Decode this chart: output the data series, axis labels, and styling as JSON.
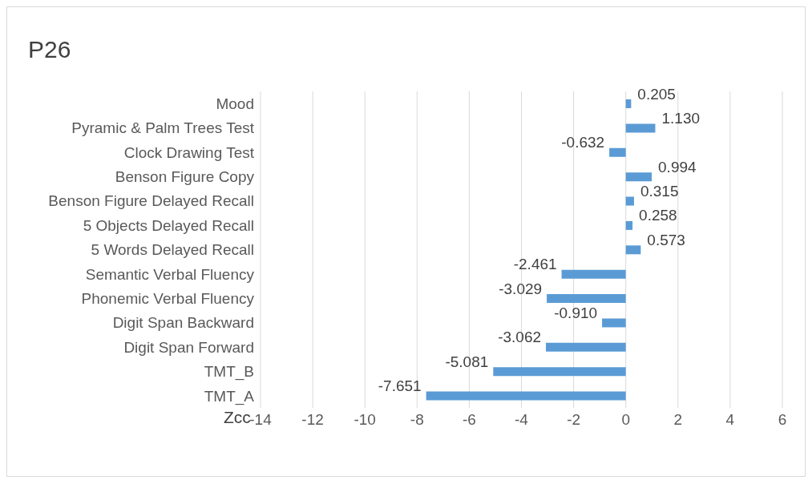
{
  "chart_data": {
    "type": "bar",
    "orientation": "horizontal",
    "title": "P26",
    "xlabel": "Zcc",
    "categories": [
      "Mood",
      "Pyramic & Palm Trees Test",
      "Clock Drawing Test",
      "Benson Figure Copy",
      "Benson Figure Delayed Recall",
      "5 Objects Delayed Recall",
      "5 Words Delayed Recall",
      "Semantic Verbal Fluency",
      "Phonemic Verbal Fluency",
      "Digit Span Backward",
      "Digit Span Forward",
      "TMT_B",
      "TMT_A"
    ],
    "values": [
      0.205,
      1.13,
      -0.632,
      0.994,
      0.315,
      0.258,
      0.573,
      -2.461,
      -3.029,
      -0.91,
      -3.062,
      -5.081,
      -7.651
    ],
    "value_labels": [
      "0.205",
      "1.130",
      "-0.632",
      "0.994",
      "0.315",
      "0.258",
      "0.573",
      "-2.461",
      "-3.029",
      "-0.910",
      "-3.062",
      "-5.081",
      "-7.651"
    ],
    "color": "#5b9bd5",
    "xlim": [
      -14,
      6
    ],
    "xticks": [
      -14,
      -12,
      -10,
      -8,
      -6,
      -4,
      -2,
      0,
      2,
      4,
      6
    ],
    "grid": "x",
    "legend": false
  }
}
